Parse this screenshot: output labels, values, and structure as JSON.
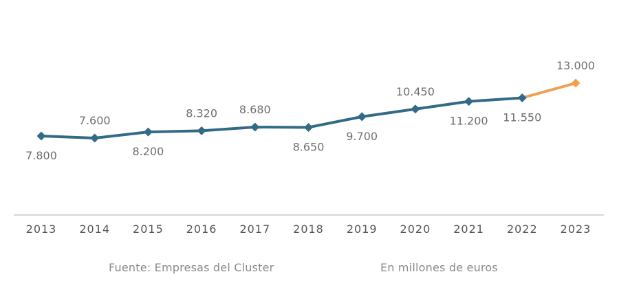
{
  "chart_data": {
    "type": "line",
    "title": "",
    "xlabel": "",
    "ylabel": "",
    "categories": [
      "2013",
      "2014",
      "2015",
      "2016",
      "2017",
      "2018",
      "2019",
      "2020",
      "2021",
      "2022",
      "2023"
    ],
    "series": [
      {
        "values": [
          7800,
          7600,
          8200,
          8320,
          8680,
          8650,
          9700,
          10450,
          11200,
          11550,
          13000
        ],
        "labels": [
          "7.800",
          "7.600",
          "8.200",
          "8.320",
          "8.680",
          "8.650",
          "9.700",
          "10.450",
          "11.200",
          "11.550",
          "13.000"
        ],
        "label_position": [
          "below",
          "above",
          "below",
          "above",
          "above",
          "below",
          "below",
          "above",
          "below",
          "below",
          "above"
        ],
        "color": "#336b87",
        "projection_color": "#f0a050",
        "projection_from_index": 9
      }
    ],
    "grid": false,
    "legend": "none"
  },
  "footer": {
    "source": "Fuente: Empresas del Cluster",
    "unit": "En millones de euros"
  },
  "colors": {
    "axis": "#c8c8c8",
    "tick_text": "#555555",
    "label_text": "#6f6f6f"
  }
}
